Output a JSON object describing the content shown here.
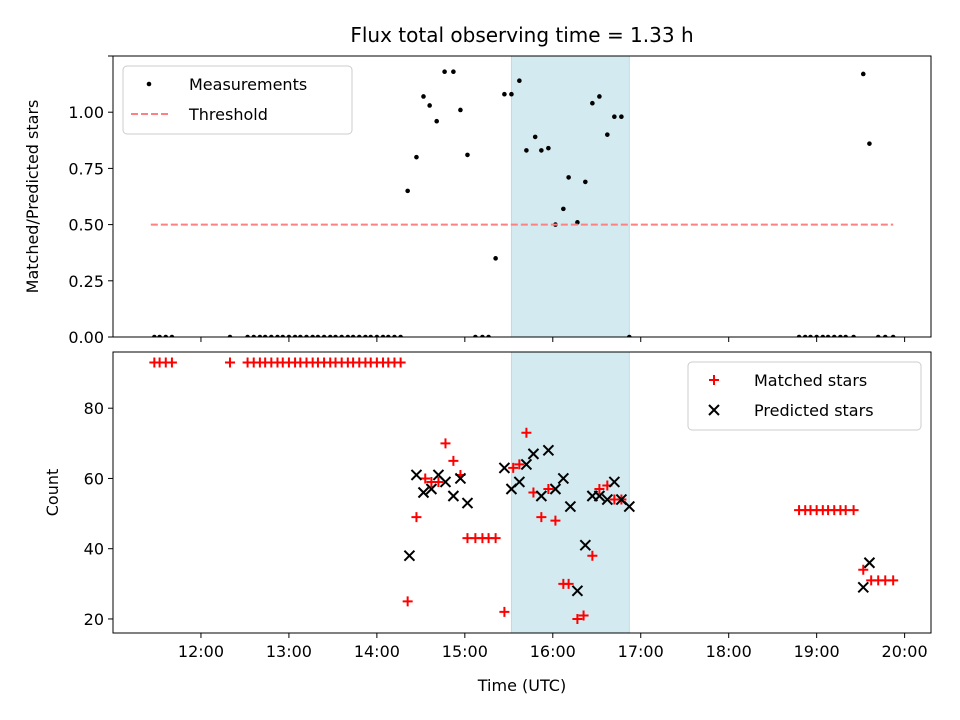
{
  "chart_data": [
    {
      "type": "scatter",
      "title": "Flux total observing time = 1.33 h",
      "xlabel": "",
      "ylabel": "Matched/Predicted stars",
      "x_unit": "hours UTC",
      "xlim": [
        11.0,
        20.3
      ],
      "ylim": [
        0.0,
        1.25
      ],
      "yticks": [
        0.0,
        0.25,
        0.5,
        0.75,
        1.0,
        1.25
      ],
      "ytick_labels": [
        "0.00",
        "0.25",
        "0.50",
        "0.75",
        "1.00",
        ""
      ],
      "xticks": [
        12,
        13,
        14,
        15,
        16,
        17,
        18,
        19,
        20
      ],
      "show_xtick_labels": false,
      "shaded_span": {
        "x": [
          15.53,
          16.87
        ],
        "color": "#d3ebf0"
      },
      "legend": {
        "location": "top-left",
        "entries": [
          "Measurements",
          "Threshold"
        ]
      },
      "series": [
        {
          "name": "Measurements",
          "kind": "points",
          "color": "#000000",
          "x": [
            11.47,
            11.53,
            11.6,
            11.67,
            12.33,
            12.53,
            12.6,
            12.67,
            12.73,
            12.8,
            12.87,
            12.93,
            13.0,
            13.07,
            13.13,
            13.2,
            13.27,
            13.33,
            13.4,
            13.47,
            13.53,
            13.6,
            13.67,
            13.73,
            13.8,
            13.87,
            13.93,
            14.0,
            14.07,
            14.13,
            14.2,
            14.27,
            14.35,
            14.45,
            14.53,
            14.6,
            14.68,
            14.77,
            14.87,
            14.95,
            15.03,
            15.12,
            15.2,
            15.27,
            15.35,
            15.45,
            15.53,
            15.62,
            15.7,
            15.8,
            15.87,
            15.95,
            16.03,
            16.12,
            16.18,
            16.28,
            16.37,
            16.45,
            16.53,
            16.62,
            16.7,
            16.78,
            16.87,
            18.8,
            18.87,
            18.93,
            19.0,
            19.07,
            19.13,
            19.2,
            19.27,
            19.33,
            19.42,
            19.53,
            19.6,
            19.7,
            19.78,
            19.87
          ],
          "y": [
            0,
            0,
            0,
            0,
            0,
            0,
            0,
            0,
            0,
            0,
            0,
            0,
            0,
            0,
            0,
            0,
            0,
            0,
            0,
            0,
            0,
            0,
            0,
            0,
            0,
            0,
            0,
            0,
            0,
            0,
            0,
            0,
            0.65,
            0.8,
            1.07,
            1.03,
            0.96,
            1.18,
            1.18,
            1.01,
            0.81,
            0,
            0,
            0,
            0.35,
            1.08,
            1.08,
            1.14,
            0.83,
            0.89,
            0.83,
            0.84,
            0.5,
            0.57,
            0.71,
            0.51,
            0.69,
            1.04,
            1.07,
            0.9,
            0.98,
            0.98,
            0,
            0,
            0,
            0,
            0,
            0,
            0,
            0,
            0,
            0,
            0,
            1.17,
            0.86,
            0,
            0,
            0
          ]
        },
        {
          "name": "Threshold",
          "kind": "dashed-line",
          "color": "#ff8080",
          "x": [
            11.43,
            19.87
          ],
          "y": [
            0.5,
            0.5
          ]
        }
      ]
    },
    {
      "type": "scatter",
      "title": "",
      "xlabel": "Time (UTC)",
      "ylabel": "Count",
      "x_unit": "hours UTC",
      "xlim": [
        11.0,
        20.3
      ],
      "ylim": [
        16,
        96
      ],
      "yticks": [
        20,
        40,
        60,
        80
      ],
      "ytick_labels": [
        "20",
        "40",
        "60",
        "80"
      ],
      "xticks": [
        12,
        13,
        14,
        15,
        16,
        17,
        18,
        19,
        20
      ],
      "xtick_labels": [
        "12:00",
        "13:00",
        "14:00",
        "15:00",
        "16:00",
        "17:00",
        "18:00",
        "19:00",
        "20:00"
      ],
      "shaded_span": {
        "x": [
          15.53,
          16.87
        ],
        "color": "#d3ebf0"
      },
      "legend": {
        "location": "top-right",
        "entries": [
          "Matched stars",
          "Predicted stars"
        ]
      },
      "series": [
        {
          "name": "Matched stars",
          "kind": "plus",
          "color": "#ff0000",
          "x": [
            11.47,
            11.53,
            11.6,
            11.67,
            12.33,
            12.53,
            12.6,
            12.67,
            12.73,
            12.8,
            12.87,
            12.93,
            13.0,
            13.07,
            13.13,
            13.2,
            13.27,
            13.33,
            13.4,
            13.47,
            13.53,
            13.6,
            13.67,
            13.73,
            13.8,
            13.87,
            13.93,
            14.0,
            14.07,
            14.13,
            14.2,
            14.27,
            14.35,
            14.45,
            14.55,
            14.62,
            14.7,
            14.78,
            14.87,
            14.95,
            15.03,
            15.12,
            15.2,
            15.27,
            15.35,
            15.45,
            15.55,
            15.62,
            15.7,
            15.78,
            15.87,
            15.95,
            16.03,
            16.12,
            16.18,
            16.28,
            16.35,
            16.45,
            16.53,
            16.62,
            16.7,
            16.78,
            18.8,
            18.87,
            18.93,
            19.0,
            19.07,
            19.13,
            19.2,
            19.27,
            19.33,
            19.42,
            19.53,
            19.62,
            19.7,
            19.78,
            19.87
          ],
          "y": [
            93,
            93,
            93,
            93,
            93,
            93,
            93,
            93,
            93,
            93,
            93,
            93,
            93,
            93,
            93,
            93,
            93,
            93,
            93,
            93,
            93,
            93,
            93,
            93,
            93,
            93,
            93,
            93,
            93,
            93,
            93,
            93,
            25,
            49,
            60,
            59,
            59,
            70,
            65,
            61,
            43,
            43,
            43,
            43,
            43,
            22,
            63,
            64,
            73,
            56,
            49,
            57,
            48,
            30,
            30,
            20,
            21,
            38,
            57,
            58,
            54,
            54,
            51,
            51,
            51,
            51,
            51,
            51,
            51,
            51,
            51,
            51,
            34,
            31,
            31,
            31,
            31
          ]
        },
        {
          "name": "Predicted stars",
          "kind": "x",
          "color": "#000000",
          "x": [
            14.37,
            14.45,
            14.53,
            14.62,
            14.7,
            14.78,
            14.87,
            14.95,
            15.03,
            15.45,
            15.53,
            15.62,
            15.7,
            15.78,
            15.87,
            15.95,
            16.03,
            16.12,
            16.2,
            16.28,
            16.37,
            16.45,
            16.53,
            16.62,
            16.7,
            16.78,
            16.87,
            19.53,
            19.6
          ],
          "y": [
            38,
            61,
            56,
            57,
            61,
            59,
            55,
            60,
            53,
            63,
            57,
            59,
            64,
            67,
            55,
            68,
            57,
            60,
            52,
            28,
            41,
            55,
            55,
            54,
            59,
            54,
            52,
            29,
            36
          ]
        }
      ]
    }
  ]
}
